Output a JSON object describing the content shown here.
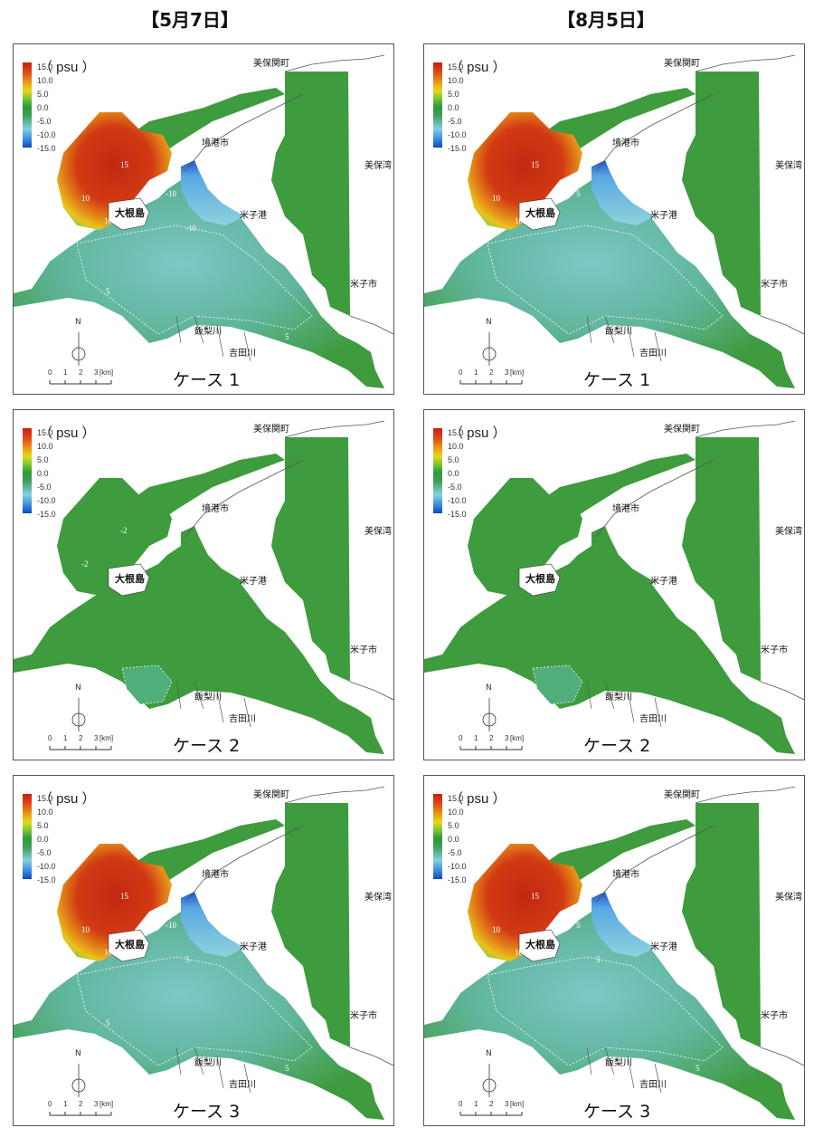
{
  "columns": [
    {
      "header": "【5月7日】"
    },
    {
      "header": "【8月5日】"
    }
  ],
  "legend": {
    "unit": "（ psu ）",
    "ticks": [
      "15.0",
      "10.0",
      "5.0",
      "0.0",
      "-5.0",
      "-10.0",
      "-15.0"
    ]
  },
  "places": {
    "mihoseki": "美保関町",
    "sakaiminato": "境港市",
    "miho_bay": "美保湾",
    "daikonjima": "大根島",
    "yonago_port": "米子港",
    "yonago_city": "米子市",
    "iinashi_river": "飯梨川",
    "yoshida_river": "吉田川"
  },
  "north": "N",
  "scale": {
    "ticks": [
      "0",
      "1",
      "2",
      "3"
    ],
    "unit": "[km]"
  },
  "panels": [
    {
      "case": "ケース 1",
      "contours": [
        "15",
        "10",
        "10",
        "-10",
        "-10",
        "5",
        "5"
      ]
    },
    {
      "case": "ケース 1",
      "contours": [
        "15",
        "10",
        "10",
        "5"
      ]
    },
    {
      "case": "ケース 2",
      "contours": [
        "-2",
        "-2"
      ]
    },
    {
      "case": "ケース 2",
      "contours": []
    },
    {
      "case": "ケース 3",
      "contours": [
        "15",
        "10",
        "10",
        "-10",
        "5",
        "5",
        "5"
      ]
    },
    {
      "case": "ケース 3",
      "contours": [
        "15",
        "10",
        "10",
        "5",
        "5",
        "5"
      ]
    }
  ],
  "colors": {
    "high": "#c62a12",
    "mid_high": "#e6a318",
    "neutral": "#3d9a3c",
    "low": "#8ed0e4",
    "very_low": "#1d5fd0",
    "water_green": "#3e9b3e",
    "land": "#ffffff"
  }
}
